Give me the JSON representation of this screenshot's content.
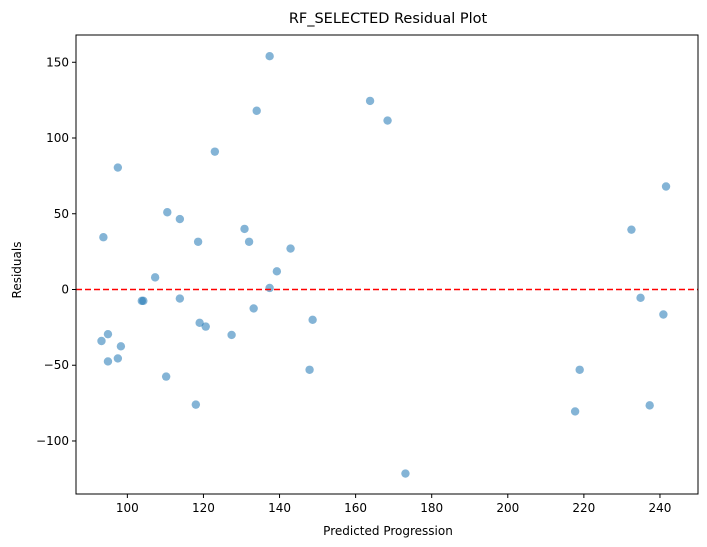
{
  "chart_data": {
    "type": "scatter",
    "title": "RF_SELECTED Residual Plot",
    "xlabel": "Predicted Progression",
    "ylabel": "Residuals",
    "xlim": [
      86.5,
      250
    ],
    "ylim": [
      -135,
      168
    ],
    "x_ticks": [
      100,
      120,
      140,
      160,
      180,
      200,
      220,
      240
    ],
    "y_ticks": [
      -100,
      -50,
      0,
      50,
      100,
      150
    ],
    "grid": false,
    "legend": "none",
    "point_color": "#1f77b4",
    "point_alpha": 0.55,
    "reference_line": {
      "y": 0,
      "color": "#ff0000",
      "style": "dashed"
    },
    "points": [
      {
        "x": 137.4,
        "y": 154
      },
      {
        "x": 163.8,
        "y": 124.5
      },
      {
        "x": 134.0,
        "y": 118
      },
      {
        "x": 168.4,
        "y": 111.5
      },
      {
        "x": 123.0,
        "y": 91
      },
      {
        "x": 97.5,
        "y": 80.5
      },
      {
        "x": 241.6,
        "y": 68
      },
      {
        "x": 110.5,
        "y": 51
      },
      {
        "x": 113.8,
        "y": 46.5
      },
      {
        "x": 130.8,
        "y": 40
      },
      {
        "x": 232.5,
        "y": 39.5
      },
      {
        "x": 93.7,
        "y": 34.5
      },
      {
        "x": 118.6,
        "y": 31.5
      },
      {
        "x": 132.0,
        "y": 31.5
      },
      {
        "x": 142.9,
        "y": 27
      },
      {
        "x": 139.3,
        "y": 12
      },
      {
        "x": 107.3,
        "y": 8
      },
      {
        "x": 137.4,
        "y": 1
      },
      {
        "x": 103.8,
        "y": -7.5
      },
      {
        "x": 104.2,
        "y": -7.5
      },
      {
        "x": 113.8,
        "y": -6
      },
      {
        "x": 234.9,
        "y": -5.5
      },
      {
        "x": 133.2,
        "y": -12.5
      },
      {
        "x": 240.9,
        "y": -16.5
      },
      {
        "x": 148.7,
        "y": -20
      },
      {
        "x": 119.0,
        "y": -22
      },
      {
        "x": 120.6,
        "y": -24.5
      },
      {
        "x": 94.9,
        "y": -29.5
      },
      {
        "x": 127.4,
        "y": -30
      },
      {
        "x": 93.2,
        "y": -34
      },
      {
        "x": 98.3,
        "y": -37.5
      },
      {
        "x": 97.5,
        "y": -45.5
      },
      {
        "x": 94.9,
        "y": -47.5
      },
      {
        "x": 147.9,
        "y": -53
      },
      {
        "x": 218.9,
        "y": -53
      },
      {
        "x": 110.2,
        "y": -57.5
      },
      {
        "x": 118.0,
        "y": -76
      },
      {
        "x": 237.3,
        "y": -76.5
      },
      {
        "x": 217.7,
        "y": -80.5
      },
      {
        "x": 173.1,
        "y": -121.5
      }
    ]
  }
}
